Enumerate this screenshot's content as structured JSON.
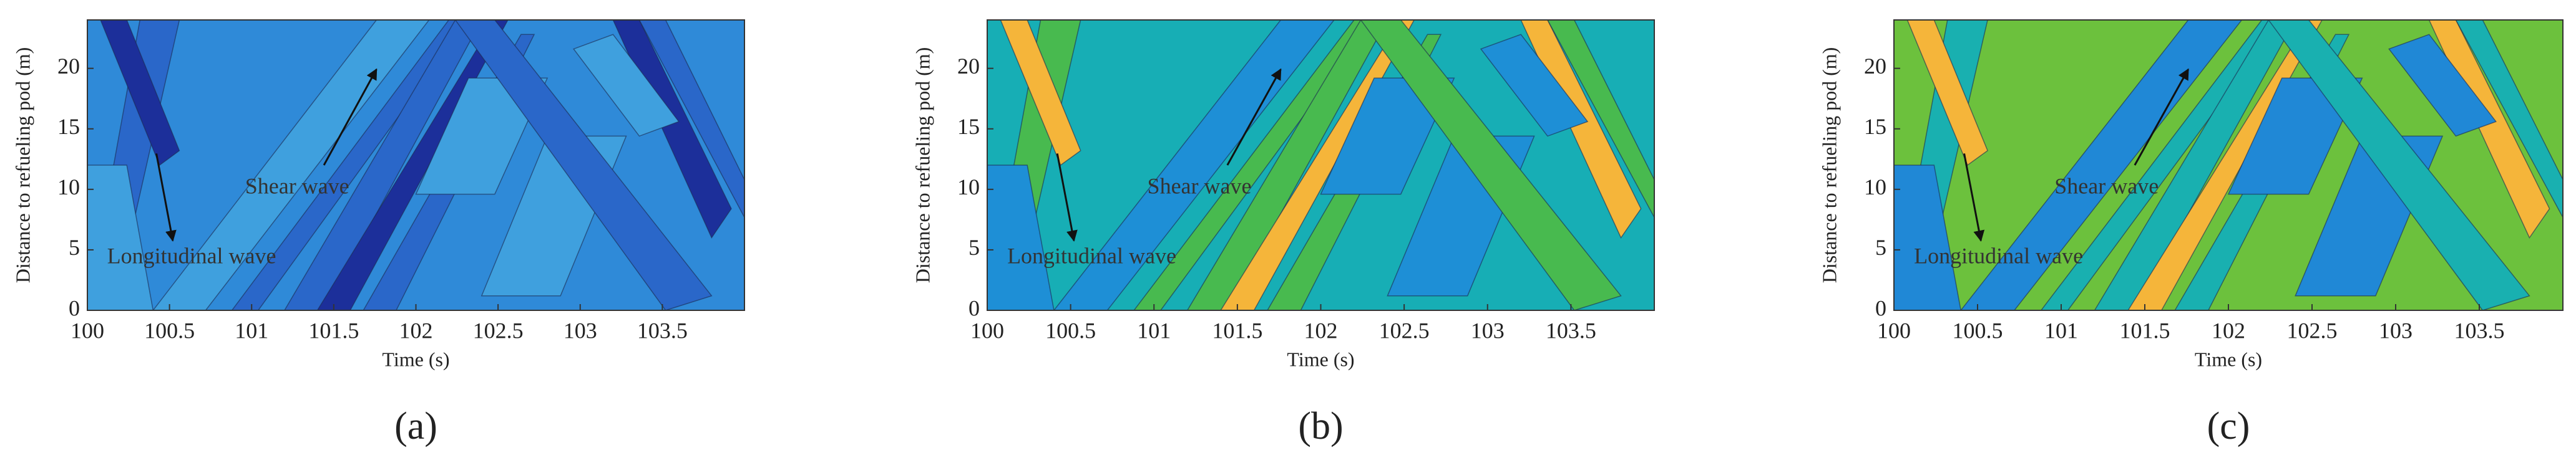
{
  "chart_data": [
    {
      "type": "contour",
      "label": "(a)",
      "xlabel": "Time (s)",
      "ylabel": "Distance to refueling pod (m)",
      "xlim": [
        100,
        104
      ],
      "xticks": [
        100,
        100.5,
        101,
        101.5,
        102,
        102.5,
        103,
        103.5
      ],
      "ylim": [
        0,
        24
      ],
      "yticks": [
        0,
        5,
        10,
        15,
        20
      ],
      "annotations": [
        "Shear wave",
        "Longitudinal wave"
      ],
      "colors": [
        "#2f8ad8",
        "#2a67c9",
        "#3fa0de",
        "#1c2f9a"
      ]
    },
    {
      "type": "contour",
      "label": "(b)",
      "xlabel": "Time (s)",
      "ylabel": "Distance to refueling pod (m)",
      "xlim": [
        100,
        104
      ],
      "xticks": [
        100,
        100.5,
        101,
        101.5,
        102,
        102.5,
        103,
        103.5
      ],
      "ylim": [
        0,
        24
      ],
      "yticks": [
        0,
        5,
        10,
        15,
        20
      ],
      "annotations": [
        "Shear wave",
        "Longitudinal wave"
      ],
      "colors": [
        "#17aeb5",
        "#48ba4f",
        "#1e8fd6",
        "#f5b53a"
      ]
    },
    {
      "type": "contour",
      "label": "(c)",
      "xlabel": "Time (s)",
      "ylabel": "Distance to refueling pod (m)",
      "xlim": [
        100,
        104
      ],
      "xticks": [
        100,
        100.5,
        101,
        101.5,
        102,
        102.5,
        103,
        103.5
      ],
      "ylim": [
        0,
        24
      ],
      "yticks": [
        0,
        5,
        10,
        15,
        20
      ],
      "annotations": [
        "Shear wave",
        "Longitudinal wave"
      ],
      "colors": [
        "#6cc13d",
        "#19b0b0",
        "#2088d6",
        "#f5b53a"
      ]
    }
  ]
}
